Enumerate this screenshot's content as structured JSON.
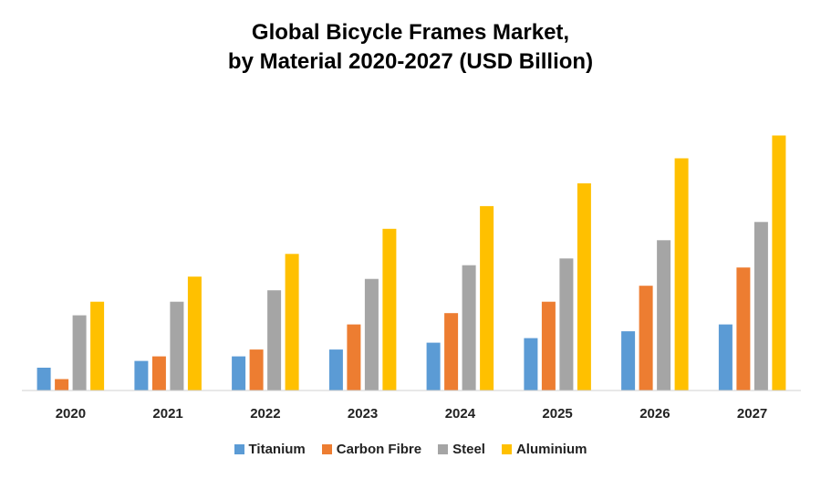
{
  "chart_data": {
    "type": "bar",
    "title_line1": "Global Bicycle Frames Market,",
    "title_line2": "by Material 2020-2027 (USD Billion)",
    "xlabel": "",
    "ylabel": "",
    "ylim": [
      0,
      11
    ],
    "grid": false,
    "legend_position": "bottom",
    "categories": [
      "2020",
      "2021",
      "2022",
      "2023",
      "2024",
      "2025",
      "2026",
      "2027"
    ],
    "series": [
      {
        "name": "Titanium",
        "color": "#5B9BD5",
        "values": [
          1.0,
          1.3,
          1.5,
          1.8,
          2.1,
          2.3,
          2.6,
          2.9
        ]
      },
      {
        "name": "Carbon Fibre",
        "color": "#ED7D31",
        "values": [
          0.5,
          1.5,
          1.8,
          2.9,
          3.4,
          3.9,
          4.6,
          5.4
        ]
      },
      {
        "name": "Steel",
        "color": "#A5A5A5",
        "values": [
          3.3,
          3.9,
          4.4,
          4.9,
          5.5,
          5.8,
          6.6,
          7.4
        ]
      },
      {
        "name": "Aluminium",
        "color": "#FFC000",
        "values": [
          3.9,
          5.0,
          6.0,
          7.1,
          8.1,
          9.1,
          10.2,
          11.2
        ]
      }
    ]
  }
}
